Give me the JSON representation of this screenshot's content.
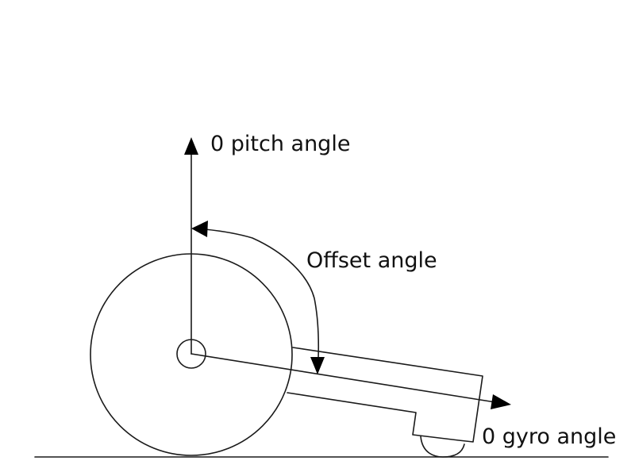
{
  "labels": {
    "pitch": "0 pitch angle",
    "offset": "Offset angle",
    "gyro": "0 gyro angle"
  },
  "colors": {
    "line": "#1a1a1a",
    "arrow": "#000000",
    "background": "#ffffff"
  }
}
